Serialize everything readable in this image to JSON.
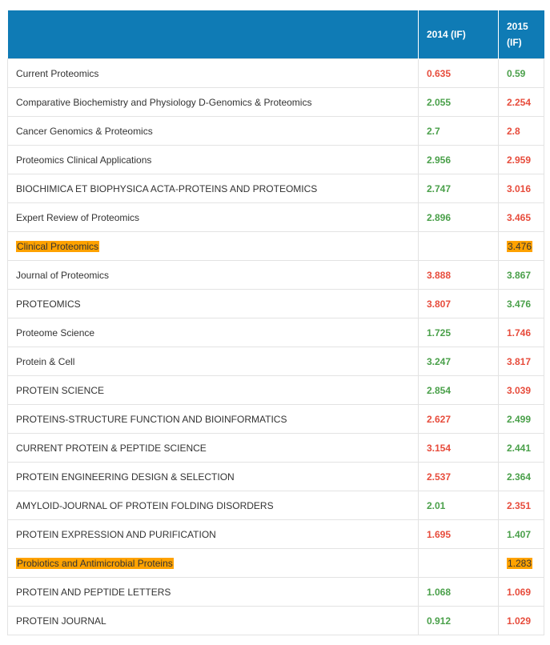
{
  "header": {
    "col_name": "",
    "col_2014": "2014 (IF)",
    "col_2015_line1": "2015",
    "col_2015_line2": "(IF)"
  },
  "colors": {
    "header_bg": "#0f7bb5",
    "green": "#4aa04a",
    "red": "#e74c3c",
    "highlight": "#ffa200"
  },
  "rows": [
    {
      "name": "Current Proteomics",
      "v2014": "0.635",
      "c2014": "red",
      "v2015": "0.59",
      "c2015": "green",
      "highlight": false
    },
    {
      "name": "Comparative Biochemistry and Physiology D-Genomics &  Proteomics",
      "v2014": "2.055",
      "c2014": "green",
      "v2015": "2.254",
      "c2015": "red",
      "highlight": false
    },
    {
      "name": "Cancer Genomics & Proteomics",
      "v2014": "2.7",
      "c2014": "green",
      "v2015": "2.8",
      "c2015": "red",
      "highlight": false
    },
    {
      "name": "Proteomics Clinical Applications",
      "v2014": "2.956",
      "c2014": "green",
      "v2015": "2.959",
      "c2015": "red",
      "highlight": false
    },
    {
      "name": "BIOCHIMICA ET BIOPHYSICA ACTA-PROTEINS AND PROTEOMICS",
      "v2014": "2.747",
      "c2014": "green",
      "v2015": "3.016",
      "c2015": "red",
      "highlight": false
    },
    {
      "name": "Expert Review of Proteomics",
      "v2014": "2.896",
      "c2014": "green",
      "v2015": "3.465",
      "c2015": "red",
      "highlight": false
    },
    {
      "name": "Clinical Proteomics",
      "v2014": "",
      "c2014": "",
      "v2015": "3.476",
      "c2015": "",
      "highlight": true
    },
    {
      "name": "Journal of Proteomics",
      "v2014": "3.888",
      "c2014": "red",
      "v2015": "3.867",
      "c2015": "green",
      "highlight": false
    },
    {
      "name": "PROTEOMICS",
      "v2014": "3.807",
      "c2014": "red",
      "v2015": "3.476",
      "c2015": "green",
      "highlight": false
    },
    {
      "name": "Proteome Science",
      "v2014": "1.725",
      "c2014": "green",
      "v2015": "1.746",
      "c2015": "red",
      "highlight": false
    },
    {
      "name": "Protein & Cell",
      "v2014": "3.247",
      "c2014": "green",
      "v2015": "3.817",
      "c2015": "red",
      "highlight": false
    },
    {
      "name": "PROTEIN SCIENCE",
      "v2014": "2.854",
      "c2014": "green",
      "v2015": "3.039",
      "c2015": "red",
      "highlight": false
    },
    {
      "name": "PROTEINS-STRUCTURE FUNCTION AND BIOINFORMATICS",
      "v2014": "2.627",
      "c2014": "red",
      "v2015": "2.499",
      "c2015": "green",
      "highlight": false
    },
    {
      "name": "CURRENT PROTEIN & PEPTIDE SCIENCE",
      "v2014": "3.154",
      "c2014": "red",
      "v2015": "2.441",
      "c2015": "green",
      "highlight": false
    },
    {
      "name": "PROTEIN ENGINEERING DESIGN & SELECTION",
      "v2014": "2.537",
      "c2014": "red",
      "v2015": "2.364",
      "c2015": "green",
      "highlight": false
    },
    {
      "name": "AMYLOID-JOURNAL OF PROTEIN FOLDING DISORDERS",
      "v2014": "2.01",
      "c2014": "green",
      "v2015": "2.351",
      "c2015": "red",
      "highlight": false
    },
    {
      "name": "PROTEIN EXPRESSION AND PURIFICATION",
      "v2014": "1.695",
      "c2014": "red",
      "v2015": "1.407",
      "c2015": "green",
      "highlight": false
    },
    {
      "name": "Probiotics and Antimicrobial Proteins",
      "v2014": "",
      "c2014": "",
      "v2015": "1.283",
      "c2015": "",
      "highlight": true
    },
    {
      "name": "PROTEIN AND PEPTIDE LETTERS",
      "v2014": "1.068",
      "c2014": "green",
      "v2015": "1.069",
      "c2015": "red",
      "highlight": false
    },
    {
      "name": "PROTEIN JOURNAL",
      "v2014": "0.912",
      "c2014": "green",
      "v2015": "1.029",
      "c2015": "red",
      "highlight": false
    }
  ]
}
